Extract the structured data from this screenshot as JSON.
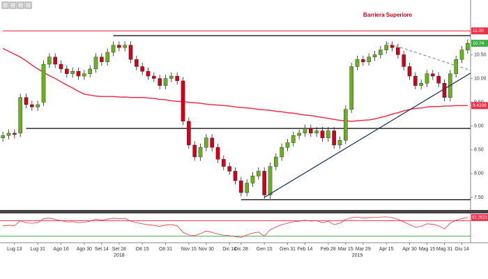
{
  "chart_data": {
    "type": "candlestick",
    "annotation": "Barriera Superiore",
    "categories": [
      null,
      null,
      "Lug 13",
      null,
      null,
      null,
      "Lug 31",
      null,
      null,
      null,
      "Ago 16",
      null,
      null,
      null,
      "Ago 30",
      null,
      null,
      "Set 14",
      null,
      null,
      "Set 28",
      null,
      null,
      null,
      "Ott 15",
      null,
      null,
      null,
      "Ott 31",
      null,
      null,
      null,
      "Nov 15",
      null,
      null,
      "Nov 30",
      null,
      null,
      null,
      "Dic 14",
      null,
      "Dic 28",
      null,
      null,
      null,
      "Gen 15",
      null,
      null,
      null,
      "Gen 31",
      null,
      null,
      "Feb 14",
      null,
      null,
      null,
      "Feb 28",
      null,
      null,
      "Mar 15",
      null,
      null,
      "Mar 29",
      null,
      null,
      null,
      "Apr 15",
      null,
      null,
      null,
      "Apr 30",
      null,
      null,
      "Mag 15",
      null,
      null,
      "Mag 31",
      null,
      null,
      "Giu 14",
      null
    ],
    "year_labels": [
      {
        "index": 20,
        "label": "2018"
      },
      {
        "index": 61,
        "label": "2019"
      }
    ],
    "open": [
      8.75,
      8.8,
      8.85,
      8.85,
      9.6,
      9.45,
      9.4,
      9.5,
      10.3,
      10.45,
      10.3,
      10.2,
      10.1,
      10.15,
      10.05,
      10.1,
      10.2,
      10.45,
      10.35,
      10.55,
      10.7,
      10.65,
      10.7,
      10.4,
      10.25,
      10.15,
      10.05,
      10.0,
      9.85,
      10.0,
      10.05,
      9.95,
      9.1,
      8.6,
      8.35,
      8.55,
      8.75,
      8.55,
      8.3,
      8.15,
      8.05,
      7.85,
      7.6,
      7.8,
      7.95,
      8.05,
      7.55,
      8.15,
      8.35,
      8.55,
      8.65,
      8.8,
      8.85,
      8.95,
      8.85,
      8.9,
      8.75,
      8.9,
      8.6,
      8.7,
      9.35,
      10.25,
      10.4,
      10.35,
      10.45,
      10.5,
      10.6,
      10.7,
      10.65,
      10.5,
      10.25,
      10.05,
      9.85,
      9.9,
      10.1,
      10.05,
      9.9,
      9.6,
      10.1,
      10.4,
      10.6
    ],
    "high": [
      8.88,
      8.93,
      8.93,
      9.68,
      9.68,
      9.53,
      9.53,
      10.38,
      10.53,
      10.53,
      10.38,
      10.28,
      10.23,
      10.23,
      10.18,
      10.28,
      10.53,
      10.53,
      10.63,
      10.78,
      10.78,
      10.78,
      10.78,
      10.48,
      10.33,
      10.23,
      10.13,
      10.08,
      10.08,
      10.13,
      10.13,
      10.03,
      9.18,
      8.68,
      8.63,
      8.83,
      8.83,
      8.63,
      8.38,
      8.23,
      8.13,
      7.93,
      7.88,
      8.03,
      8.13,
      8.13,
      8.23,
      8.43,
      8.63,
      8.73,
      8.88,
      8.93,
      9.03,
      9.03,
      8.98,
      8.98,
      8.98,
      8.98,
      8.78,
      9.43,
      10.33,
      10.48,
      10.48,
      10.53,
      10.58,
      10.68,
      10.78,
      10.78,
      10.73,
      10.58,
      10.33,
      10.13,
      9.98,
      10.18,
      10.18,
      10.13,
      9.98,
      10.18,
      10.48,
      10.68,
      10.82
    ],
    "low": [
      8.67,
      8.72,
      8.74,
      8.77,
      9.37,
      9.32,
      9.32,
      9.42,
      10.22,
      10.22,
      10.12,
      10.02,
      10.02,
      9.97,
      9.97,
      10.02,
      10.12,
      10.27,
      10.27,
      10.47,
      10.57,
      10.57,
      10.32,
      10.17,
      10.07,
      9.97,
      9.92,
      9.77,
      9.77,
      9.92,
      9.87,
      9.02,
      8.52,
      8.27,
      8.27,
      8.47,
      8.47,
      8.22,
      8.07,
      7.97,
      7.77,
      7.52,
      7.52,
      7.72,
      7.87,
      7.47,
      7.47,
      8.07,
      8.27,
      8.47,
      8.57,
      8.72,
      8.77,
      8.77,
      8.77,
      8.67,
      8.67,
      8.52,
      8.52,
      8.62,
      9.27,
      10.17,
      10.27,
      10.27,
      10.37,
      10.42,
      10.52,
      10.57,
      10.42,
      10.17,
      9.97,
      9.77,
      9.77,
      9.82,
      9.97,
      9.82,
      9.52,
      9.52,
      10.02,
      10.32,
      10.52
    ],
    "close": [
      8.8,
      8.85,
      8.82,
      9.6,
      9.45,
      9.4,
      9.45,
      10.3,
      10.45,
      10.3,
      10.2,
      10.1,
      10.15,
      10.05,
      10.1,
      10.2,
      10.45,
      10.35,
      10.55,
      10.7,
      10.65,
      10.7,
      10.4,
      10.25,
      10.15,
      10.05,
      10.0,
      9.85,
      10.0,
      10.05,
      9.95,
      9.1,
      8.6,
      8.35,
      8.55,
      8.75,
      8.55,
      8.3,
      8.15,
      8.05,
      7.85,
      7.6,
      7.8,
      7.95,
      8.05,
      7.55,
      8.15,
      8.35,
      8.55,
      8.65,
      8.8,
      8.85,
      8.95,
      8.85,
      8.9,
      8.75,
      8.9,
      8.6,
      8.7,
      9.35,
      10.25,
      10.4,
      10.35,
      10.45,
      10.5,
      10.6,
      10.7,
      10.65,
      10.5,
      10.25,
      10.05,
      9.85,
      9.9,
      10.1,
      10.05,
      9.9,
      9.6,
      10.1,
      10.4,
      10.6,
      10.74
    ],
    "up_color": "#6ab023",
    "down_color": "#d0021b",
    "moving_average": {
      "color": "#e8344a",
      "values": [
        10.63,
        10.57,
        10.51,
        10.45,
        10.37,
        10.28,
        10.2,
        10.13,
        10.06,
        10.0,
        9.93,
        9.86,
        9.8,
        9.73,
        9.67,
        9.65,
        9.63,
        9.62,
        9.62,
        9.62,
        9.61,
        9.61,
        9.6,
        9.6,
        9.6,
        9.59,
        9.58,
        9.56,
        9.55,
        9.53,
        9.52,
        9.51,
        9.5,
        9.49,
        9.48,
        9.46,
        9.45,
        9.44,
        9.43,
        9.42,
        9.4,
        9.39,
        9.38,
        9.37,
        9.35,
        9.34,
        9.33,
        9.31,
        9.3,
        9.28,
        9.27,
        9.25,
        9.23,
        9.22,
        9.2,
        9.18,
        9.16,
        9.14,
        9.12,
        9.11,
        9.1,
        9.11,
        9.12,
        9.13,
        9.15,
        9.18,
        9.21,
        9.25,
        9.28,
        9.32,
        9.35,
        9.37,
        9.38,
        9.4,
        9.41,
        9.41,
        9.42,
        9.42,
        9.43,
        9.43,
        9.4296
      ]
    },
    "ylim": [
      7.25,
      11.65
    ],
    "yticks": [
      {
        "value": 7.5,
        "label": "7.50"
      },
      {
        "value": 8,
        "label": "8.00"
      },
      {
        "value": 8.5,
        "label": "8.50"
      },
      {
        "value": 9,
        "label": "9.00"
      },
      {
        "value": 9.5,
        "label": "9.50"
      },
      {
        "value": 10,
        "label": "10.00"
      },
      {
        "value": 10.5,
        "label": "10.50"
      }
    ],
    "hlines": [
      {
        "y": 11.0,
        "from": 0,
        "color": "#e8344a"
      },
      {
        "y": 10.9,
        "from": 19,
        "color": "#000000"
      },
      {
        "y": 8.95,
        "from": 4,
        "color": "#000000"
      },
      {
        "y": 7.45,
        "from": 41,
        "color": "#000000"
      }
    ],
    "trendlines": [
      {
        "x": [
          45,
          81
        ],
        "y": [
          7.5,
          10.15
        ],
        "color": "#1f3a5f",
        "dashed": false
      },
      {
        "x": [
          66,
          81
        ],
        "y": [
          10.75,
          10.15
        ],
        "color": "#999999",
        "dashed": true
      }
    ],
    "price_labels": [
      {
        "value": 11.0,
        "label": "11.00",
        "color": "#e8344a"
      },
      {
        "value": 10.74,
        "label": "10.74",
        "color": "#3cb043"
      },
      {
        "value": 9.4296,
        "label": "9.4296",
        "color": "#e8344a"
      }
    ],
    "oscillator": {
      "color": "#e8344a",
      "ylim": [
        0,
        100
      ],
      "values": [
        60,
        62,
        61,
        80,
        72,
        70,
        72,
        88,
        90,
        85,
        80,
        75,
        76,
        72,
        74,
        78,
        86,
        82,
        86,
        90,
        88,
        89,
        78,
        72,
        68,
        64,
        62,
        58,
        63,
        65,
        60,
        35,
        25,
        22,
        30,
        40,
        35,
        28,
        24,
        22,
        18,
        15,
        25,
        32,
        36,
        20,
        45,
        55,
        65,
        70,
        76,
        78,
        82,
        78,
        80,
        72,
        78,
        65,
        70,
        85,
        92,
        94,
        90,
        92,
        93,
        94,
        95,
        92,
        85,
        75,
        65,
        55,
        58,
        68,
        66,
        60,
        48,
        70,
        82,
        88,
        92.2623
      ],
      "levels": [
        {
          "y": 80,
          "color": "#e8344a"
        },
        {
          "y": 20,
          "color": "#3cb043"
        }
      ],
      "last_label": {
        "value": 92.2623,
        "label": "92.2623"
      }
    }
  }
}
